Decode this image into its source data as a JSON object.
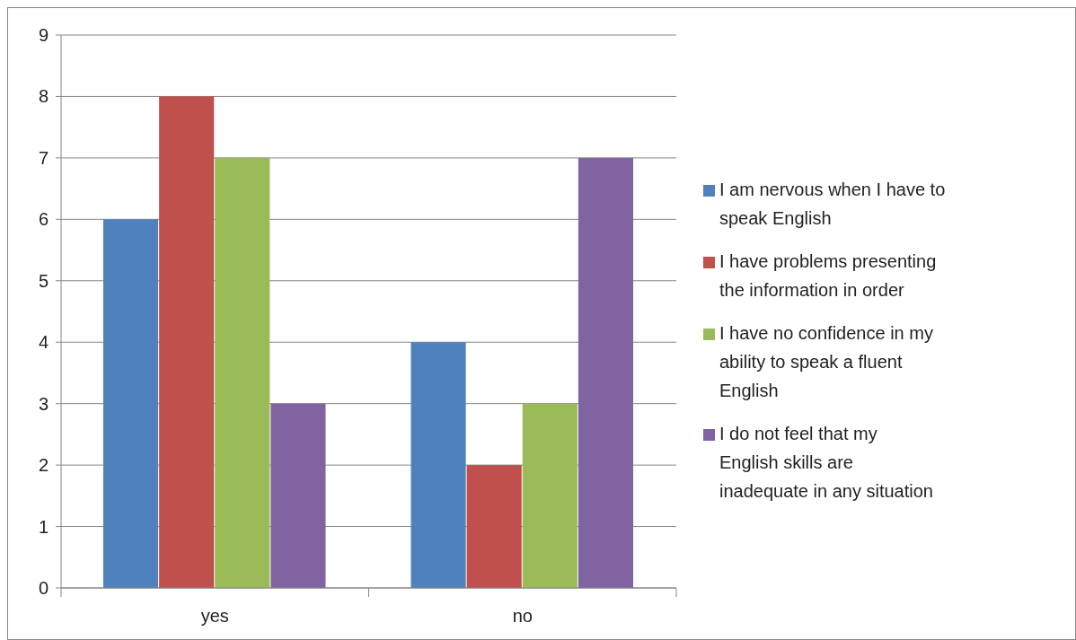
{
  "chart_data": {
    "type": "bar",
    "categories": [
      "yes",
      "no"
    ],
    "series": [
      {
        "name": "I am nervous when I have to speak English",
        "color": "#4f81bd",
        "values": [
          6,
          4
        ]
      },
      {
        "name": "I have problems presenting the information in order",
        "color": "#c0504d",
        "values": [
          8,
          2
        ]
      },
      {
        "name": "I have no confidence in my ability to speak a fluent English",
        "color": "#9bbb59",
        "values": [
          7,
          3
        ]
      },
      {
        "name": "I do not feel that my English skills are inadequate in any situation",
        "color": "#8064a2",
        "values": [
          3,
          7
        ]
      }
    ],
    "ylim": [
      0,
      9
    ],
    "yticks": [
      0,
      1,
      2,
      3,
      4,
      5,
      6,
      7,
      8,
      9
    ],
    "grid": "y",
    "legend": "right"
  }
}
